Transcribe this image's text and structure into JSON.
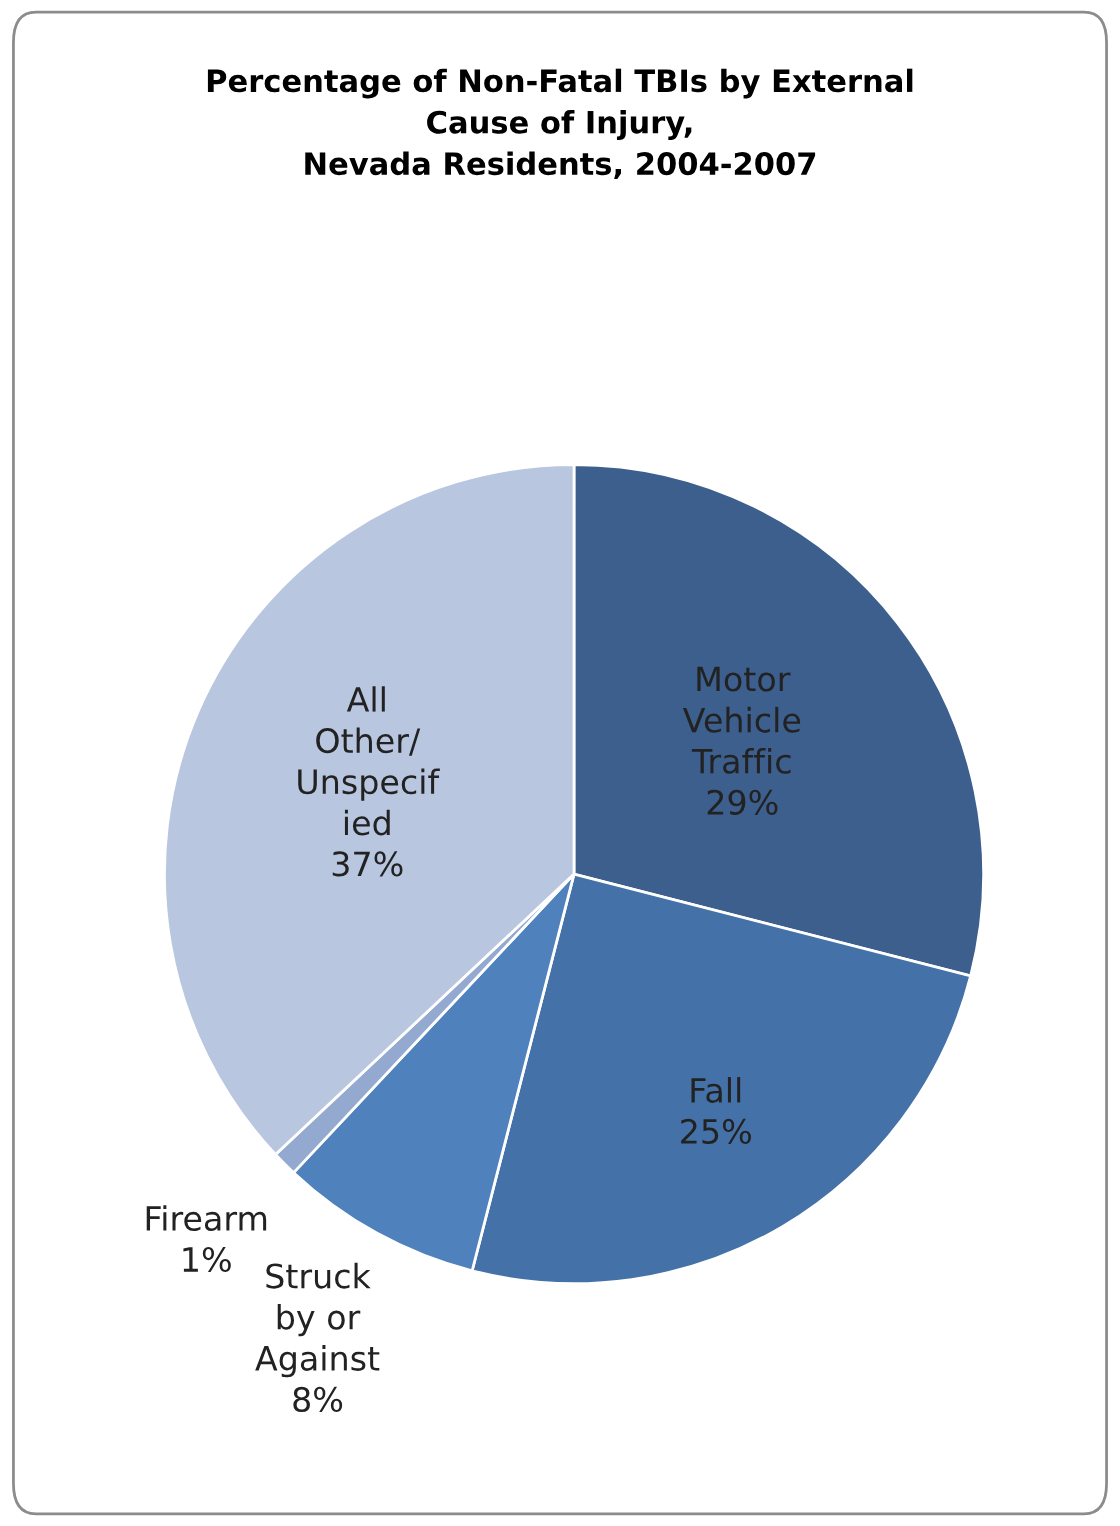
{
  "chart_data": {
    "type": "pie",
    "title": "Percentage of Non-Fatal TBIs by External\nCause of Injury,\nNevada Residents, 2004-2007",
    "categories": [
      "Motor\nVehicle\nTraffic",
      "Fall",
      "Struck\nby or\nAgainst",
      "Firearm",
      "All\nOther/\nUnspecif\nied"
    ],
    "values": [
      29,
      25,
      8,
      1,
      37
    ],
    "value_labels": [
      "29%",
      "25%",
      "8%",
      "1%",
      "37%"
    ],
    "colors": [
      "#3c5f8e",
      "#4472a8",
      "#4f81bd",
      "#93a9d0",
      "#b9c6e0"
    ],
    "legend": false
  }
}
